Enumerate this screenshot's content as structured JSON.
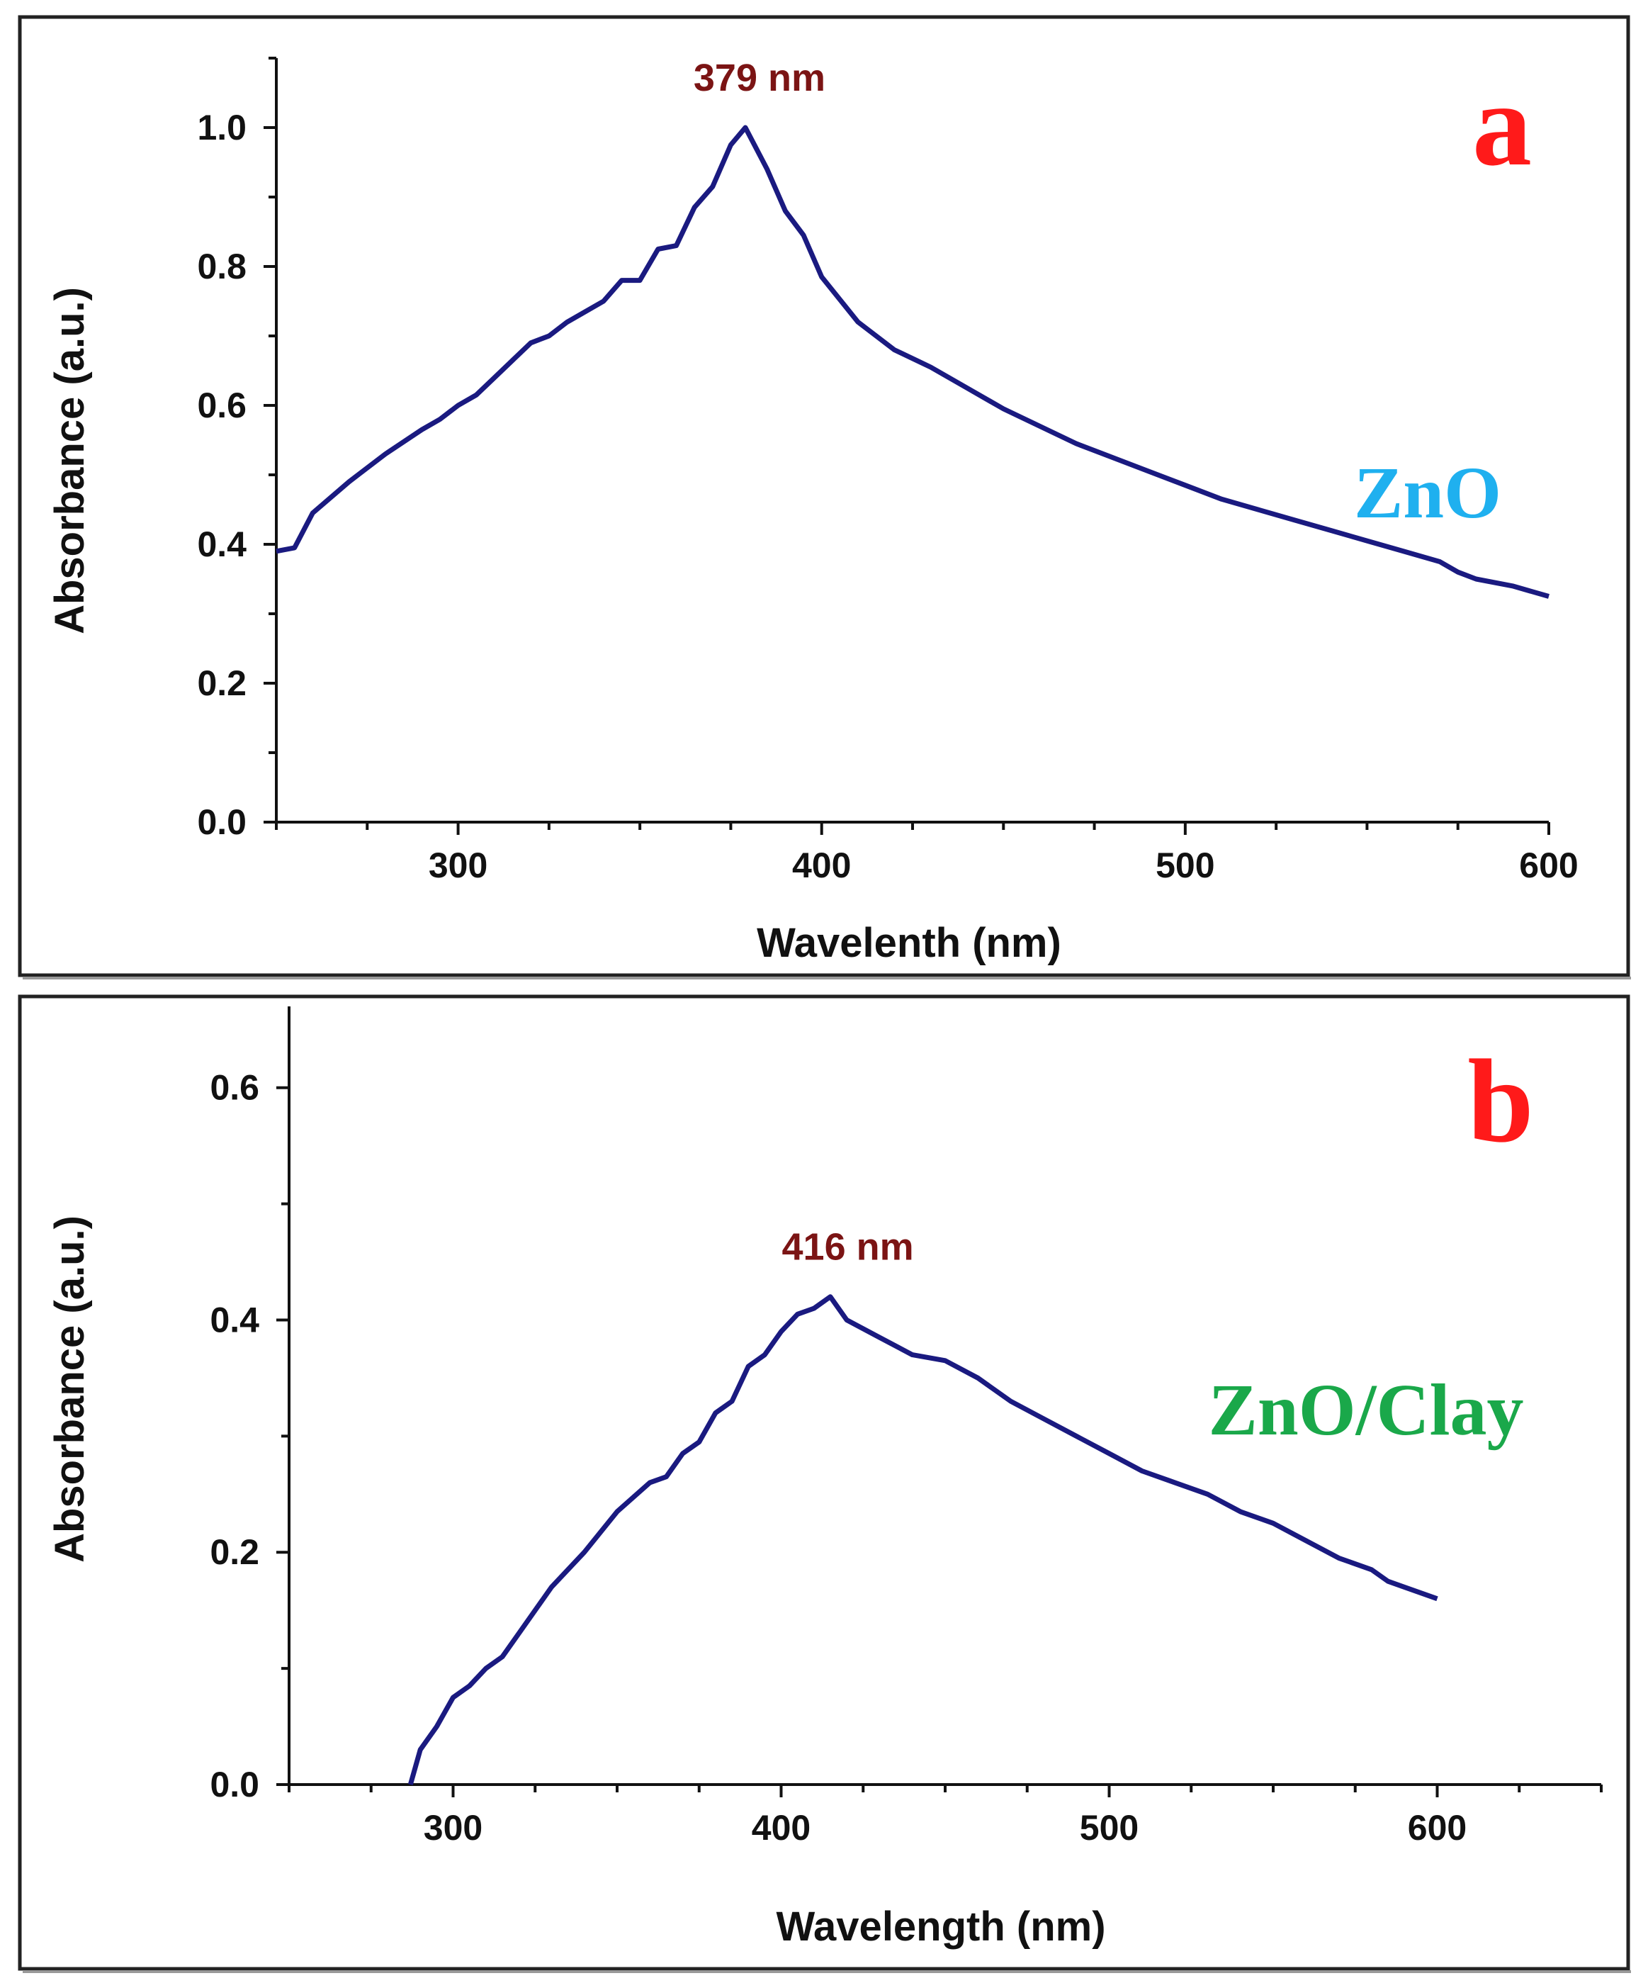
{
  "chart_data": [
    {
      "panel": "a",
      "type": "line",
      "xlabel": "Wavelenth (nm)",
      "ylabel": "Absorbance (a.u.)",
      "xlim": [
        250,
        600
      ],
      "ylim": [
        0,
        1.1
      ],
      "xticks": [
        "300",
        "400",
        "500",
        "600"
      ],
      "yticks": [
        "0.0",
        "0.2",
        "0.4",
        "0.6",
        "0.8",
        "1.0"
      ],
      "grid": false,
      "peak": {
        "x": 379,
        "y": 1.0,
        "label": "379 nm"
      },
      "series": [
        {
          "name": "ZnO",
          "x": [
            250,
            255,
            260,
            270,
            280,
            290,
            295,
            300,
            305,
            310,
            315,
            320,
            325,
            330,
            335,
            340,
            345,
            350,
            355,
            360,
            365,
            370,
            375,
            379,
            385,
            390,
            395,
            400,
            410,
            420,
            430,
            440,
            450,
            460,
            470,
            480,
            490,
            500,
            510,
            520,
            530,
            540,
            550,
            560,
            570,
            575,
            580,
            590,
            600
          ],
          "y": [
            0.39,
            0.395,
            0.445,
            0.49,
            0.53,
            0.565,
            0.58,
            0.6,
            0.615,
            0.64,
            0.665,
            0.69,
            0.7,
            0.72,
            0.735,
            0.75,
            0.78,
            0.78,
            0.825,
            0.83,
            0.885,
            0.915,
            0.975,
            1.0,
            0.94,
            0.88,
            0.845,
            0.785,
            0.72,
            0.68,
            0.655,
            0.625,
            0.595,
            0.57,
            0.545,
            0.525,
            0.505,
            0.485,
            0.465,
            0.45,
            0.435,
            0.42,
            0.405,
            0.39,
            0.375,
            0.36,
            0.35,
            0.34,
            0.325
          ]
        }
      ],
      "annotations": [
        "a",
        "ZnO"
      ],
      "colors": {
        "line": "#1a1a80",
        "peak_label": "#7b1414",
        "panel_letter": "#ff1a1a",
        "series_label": "#1fb0ef"
      }
    },
    {
      "panel": "b",
      "type": "line",
      "xlabel": "Wavelength (nm)",
      "ylabel": "Absorbance (a.u.)",
      "xlim": [
        250,
        650
      ],
      "ylim": [
        0,
        0.67
      ],
      "xticks": [
        "300",
        "400",
        "500",
        "600"
      ],
      "yticks": [
        "0.0",
        "0.2",
        "0.4",
        "0.6"
      ],
      "grid": false,
      "peak": {
        "x": 416,
        "y": 0.42,
        "label": "416 nm"
      },
      "series": [
        {
          "name": "ZnO/Clay",
          "x": [
            287,
            290,
            295,
            300,
            305,
            310,
            315,
            320,
            330,
            340,
            350,
            360,
            365,
            370,
            375,
            380,
            385,
            390,
            395,
            400,
            405,
            410,
            415,
            420,
            430,
            440,
            450,
            460,
            470,
            480,
            490,
            500,
            510,
            520,
            530,
            540,
            550,
            560,
            570,
            580,
            585,
            590,
            600
          ],
          "y": [
            0.0,
            0.03,
            0.05,
            0.075,
            0.085,
            0.1,
            0.11,
            0.13,
            0.17,
            0.2,
            0.235,
            0.26,
            0.265,
            0.285,
            0.295,
            0.32,
            0.33,
            0.36,
            0.37,
            0.39,
            0.405,
            0.41,
            0.42,
            0.4,
            0.385,
            0.37,
            0.365,
            0.35,
            0.33,
            0.315,
            0.3,
            0.285,
            0.27,
            0.26,
            0.25,
            0.235,
            0.225,
            0.21,
            0.195,
            0.185,
            0.175,
            0.17,
            0.16
          ]
        }
      ],
      "annotations": [
        "b",
        "ZnO/Clay"
      ],
      "colors": {
        "line": "#1a1a80",
        "peak_label": "#7b1414",
        "panel_letter": "#ff1a1a",
        "series_label": "#1aa84a"
      }
    }
  ]
}
